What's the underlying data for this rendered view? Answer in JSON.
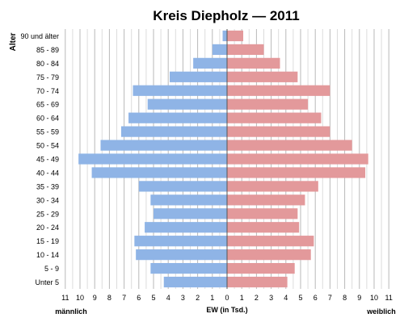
{
  "chart_data": {
    "type": "bar",
    "title": "Kreis Diepholz — 2011",
    "ylabel": "Alter",
    "xlabel": "EW (in Tsd.)",
    "left_label": "männlich",
    "right_label": "weiblich",
    "categories": [
      "90 und älter",
      "85 - 89",
      "80 - 84",
      "75 - 79",
      "70 - 74",
      "65 - 69",
      "60 - 64",
      "55 - 59",
      "50 - 54",
      "45 - 49",
      "40 - 44",
      "35 - 39",
      "30 - 34",
      "25 - 29",
      "20 - 24",
      "15 - 19",
      "10 - 14",
      "5 - 9",
      "Unter 5"
    ],
    "series": [
      {
        "name": "männlich",
        "color": "#8fb4e6",
        "values": [
          0.3,
          1.0,
          2.3,
          3.9,
          6.4,
          5.4,
          6.7,
          7.2,
          8.6,
          10.1,
          9.2,
          6.0,
          5.2,
          5.0,
          5.6,
          6.3,
          6.2,
          5.2,
          4.3
        ]
      },
      {
        "name": "weiblich",
        "color": "#e3999b",
        "values": [
          1.1,
          2.5,
          3.6,
          4.8,
          7.0,
          5.5,
          6.4,
          7.0,
          8.5,
          9.6,
          9.4,
          6.2,
          5.3,
          4.8,
          4.9,
          5.9,
          5.7,
          4.6,
          4.1
        ]
      }
    ],
    "xlim": [
      -11,
      11
    ],
    "xticks": [
      "11",
      "10",
      "9",
      "8",
      "7",
      "6",
      "5",
      "4",
      "3",
      "2",
      "1",
      "0",
      "1",
      "2",
      "3",
      "4",
      "5",
      "6",
      "7",
      "8",
      "9",
      "10",
      "11"
    ],
    "grid": true
  }
}
